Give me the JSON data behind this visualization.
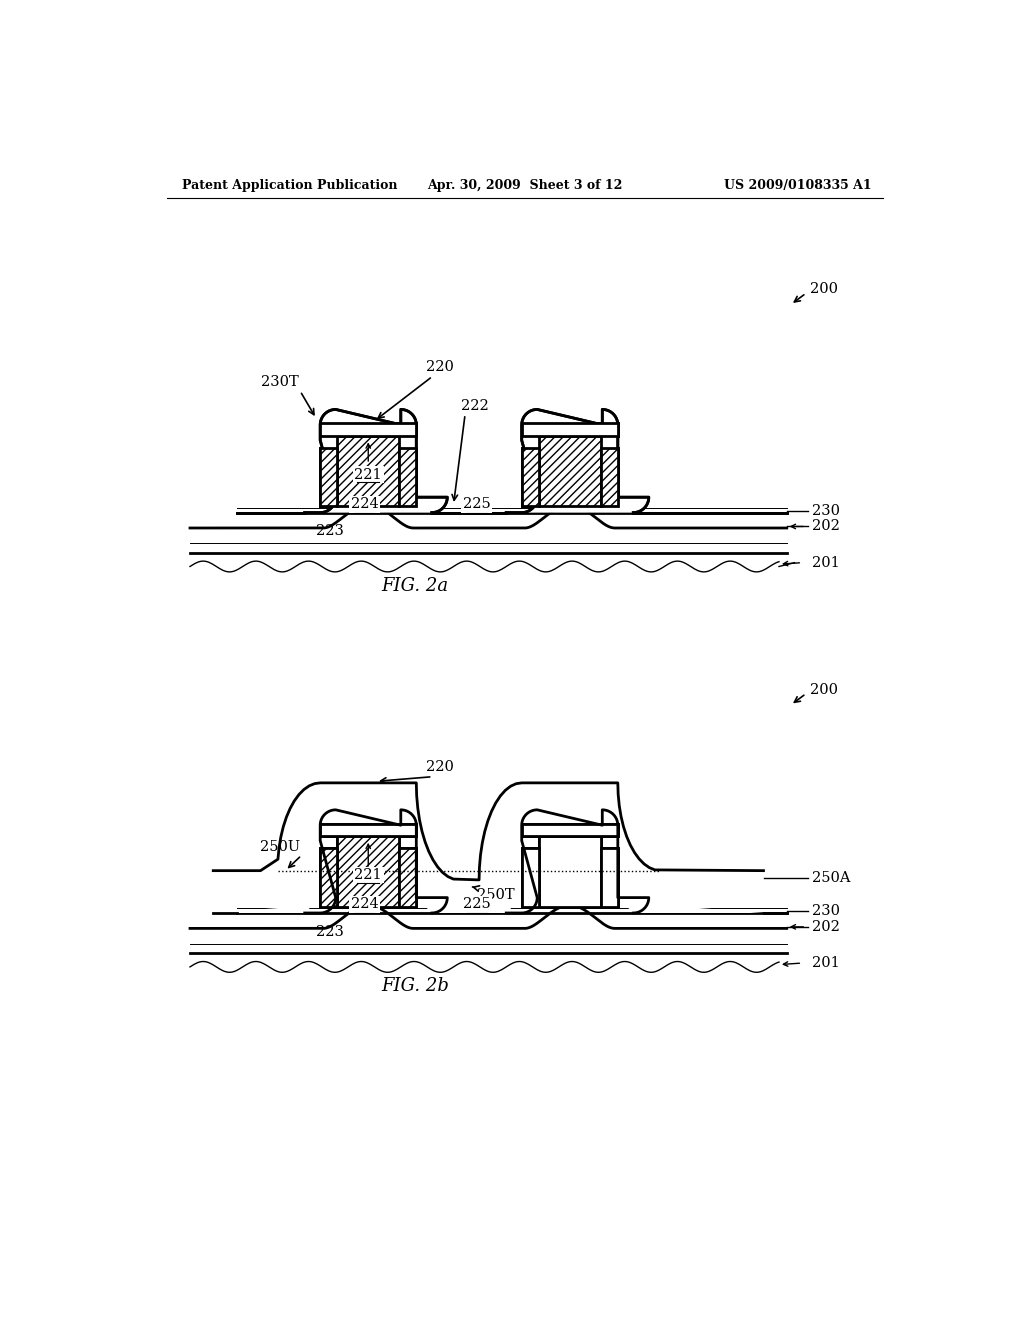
{
  "title_left": "Patent Application Publication",
  "title_mid": "Apr. 30, 2009  Sheet 3 of 12",
  "title_right": "US 2009/0108335 A1",
  "fig_a_label": "FIG. 2a",
  "fig_b_label": "FIG. 2b",
  "background": "#ffffff",
  "line_color": "#000000"
}
